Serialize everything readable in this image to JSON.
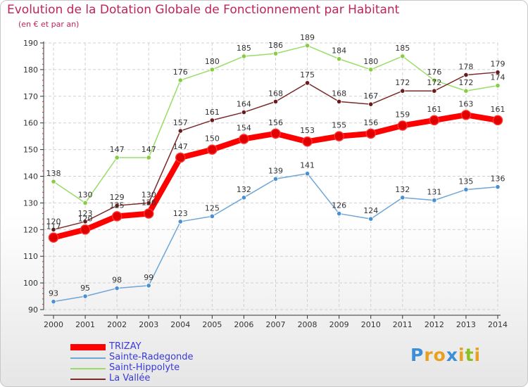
{
  "header": {
    "title": "Evolution de la Dotation Globale de Fonctionnement par Habitant",
    "subtitle": "(en € et par an)"
  },
  "logo": {
    "letters": [
      "P",
      "r",
      "o",
      "x",
      "i",
      "t",
      "i"
    ],
    "colors": [
      "#3a8fd8",
      "#e8a020",
      "#e8a020",
      "#3a8fd8",
      "#e8a020",
      "#8ac020",
      "#e8a020"
    ],
    "text": "Proxiti"
  },
  "chart_data": {
    "type": "line",
    "title": "Evolution de la Dotation Globale de Fonctionnement par Habitant",
    "ylabel": "(en € et par an)",
    "xlabel": "",
    "ylim": [
      90,
      190
    ],
    "yticks": [
      90,
      100,
      110,
      120,
      130,
      140,
      150,
      160,
      170,
      180,
      190
    ],
    "grid": true,
    "x": [
      "2000",
      "2001",
      "2002",
      "2003",
      "2004",
      "2005",
      "2006",
      "2007",
      "2008",
      "2009",
      "2010",
      "2011",
      "2012",
      "2013",
      "2014"
    ],
    "series": [
      {
        "name": "TRIZAY",
        "color": "#ff0000",
        "marker": "#e00000",
        "values": [
          117,
          120,
          125,
          126,
          147,
          150,
          154,
          156,
          153,
          155,
          156,
          159,
          161,
          163,
          161
        ]
      },
      {
        "name": "Sainte-Radegonde",
        "color": "#6fa6d6",
        "marker": "#4a90d0",
        "values": [
          93,
          95,
          98,
          99,
          123,
          125,
          132,
          139,
          141,
          126,
          124,
          132,
          131,
          135,
          136
        ]
      },
      {
        "name": "Saint-Hippolyte",
        "color": "#99dd66",
        "marker": "#88cc44",
        "values": [
          138,
          130,
          147,
          147,
          176,
          180,
          185,
          186,
          189,
          184,
          180,
          185,
          176,
          172,
          174
        ]
      },
      {
        "name": "La Vallée",
        "color": "#7a2a2a",
        "marker": "#6a1a1a",
        "values": [
          120,
          123,
          129,
          130,
          157,
          161,
          164,
          168,
          175,
          168,
          167,
          172,
          172,
          178,
          179
        ]
      }
    ],
    "legend_position": "bottom-left"
  }
}
